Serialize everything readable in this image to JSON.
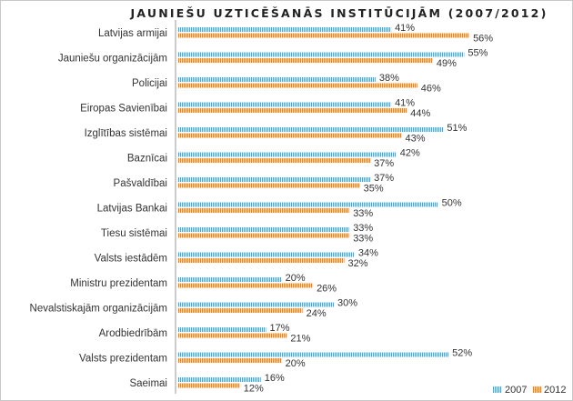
{
  "chart_data": {
    "type": "bar",
    "orientation": "horizontal",
    "title": "JAUNIEŠU UZTICĒŠANĀS INSTITŪCIJĀM (2007/2012)",
    "categories": [
      "Latvijas armijai",
      "Jauniešu organizācijām",
      "Policijai",
      "Eiropas Savienībai",
      "Izglītības sistēmai",
      "Baznīcai",
      "Pašvaldībai",
      "Latvijas Bankai",
      "Tiesu sistēmai",
      "Valsts iestādēm",
      "Ministru prezidentam",
      "Nevalstiskajām organizācijām",
      "Arodbiedrībām",
      "Valsts prezidentam",
      "Saeimai"
    ],
    "series": [
      {
        "name": "2007",
        "color": "#5b9bd5",
        "values": [
          41,
          55,
          38,
          41,
          51,
          42,
          37,
          50,
          33,
          34,
          20,
          30,
          17,
          52,
          16
        ]
      },
      {
        "name": "2012",
        "color": "#ed7d31",
        "values": [
          56,
          49,
          46,
          44,
          43,
          37,
          35,
          33,
          33,
          32,
          26,
          24,
          21,
          20,
          12
        ]
      }
    ],
    "value_suffix": "%",
    "xlim": [
      0,
      60
    ],
    "grid": false,
    "legend": "bottom-right"
  }
}
